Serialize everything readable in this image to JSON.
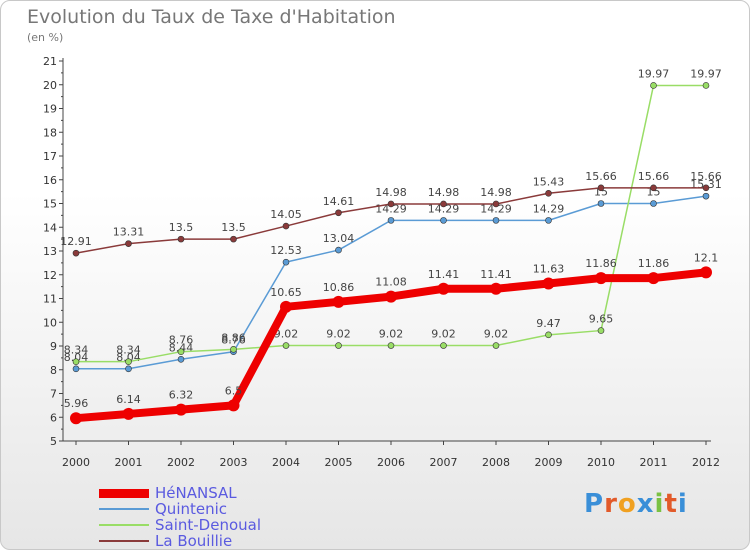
{
  "title": "Evolution du Taux de Taxe d'Habitation",
  "subtitle": "(en %)",
  "logo": {
    "text": "Proxiti",
    "colors": [
      "#3a8fd8",
      "#e25a2a",
      "#f0a020",
      "#3a8fd8",
      "#7ac143",
      "#e25a2a",
      "#3a8fd8"
    ]
  },
  "chart_data": {
    "type": "line",
    "title": "Evolution du Taux de Taxe d'Habitation",
    "ylabel": "(en %)",
    "xlabel": "",
    "x": [
      "2000",
      "2001",
      "2002",
      "2003",
      "2004",
      "2005",
      "2006",
      "2007",
      "2008",
      "2009",
      "2010",
      "2011",
      "2012"
    ],
    "ylim": [
      5,
      21
    ],
    "yticks": [
      "5",
      "6",
      "7",
      "8",
      "9",
      "10",
      "11",
      "12",
      "13",
      "14",
      "15",
      "16",
      "17",
      "18",
      "19",
      "20",
      "21"
    ],
    "grid": false,
    "legend_position": "bottom-left",
    "series": [
      {
        "name": "HéNANSAL",
        "color": "#ee0000",
        "bold": true,
        "values": [
          5.96,
          6.14,
          6.32,
          6.5,
          10.65,
          10.86,
          11.08,
          11.41,
          11.41,
          11.63,
          11.86,
          11.86,
          12.1
        ],
        "labels": [
          "5.96",
          "6.14",
          "6.32",
          "6.5",
          "10.65",
          "10.86",
          "11.08",
          "11.41",
          "11.41",
          "11.63",
          "11.86",
          "11.86",
          "12.1"
        ]
      },
      {
        "name": "Quintenic",
        "color": "#5a9bd5",
        "bold": false,
        "values": [
          8.04,
          8.04,
          8.44,
          8.76,
          12.53,
          13.04,
          14.29,
          14.29,
          14.29,
          14.29,
          15,
          15,
          15.31
        ],
        "labels": [
          "8.04",
          "8.04",
          "8.44",
          "8.76",
          "12.53",
          "13.04",
          "14.29",
          "14.29",
          "14.29",
          "14.29",
          "15",
          "15",
          "15.31"
        ]
      },
      {
        "name": "Saint-Denoual",
        "color": "#99dd66",
        "bold": false,
        "values": [
          8.34,
          8.34,
          8.76,
          8.86,
          9.02,
          9.02,
          9.02,
          9.02,
          9.02,
          9.47,
          9.65,
          19.97,
          19.97
        ],
        "labels": [
          "8.34",
          "8.34",
          "8.76",
          "8.86",
          "9.02",
          "9.02",
          "9.02",
          "9.02",
          "9.02",
          "9.47",
          "9.65",
          "19.97",
          "19.97"
        ]
      },
      {
        "name": "La Bouillie",
        "color": "#8a3a3a",
        "bold": false,
        "values": [
          12.91,
          13.31,
          13.5,
          13.5,
          14.05,
          14.61,
          14.98,
          14.98,
          14.98,
          15.43,
          15.66,
          15.66,
          15.66
        ],
        "labels": [
          "12.91",
          "13.31",
          "13.5",
          "13.5",
          "14.05",
          "14.61",
          "14.98",
          "14.98",
          "14.98",
          "15.43",
          "15.66",
          "15.66",
          "15.66"
        ]
      }
    ]
  }
}
